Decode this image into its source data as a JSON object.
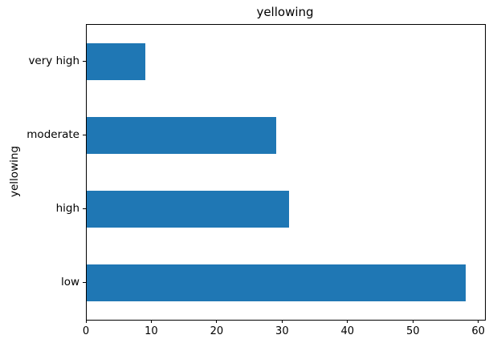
{
  "figure": {
    "background_color": "#ffffff",
    "text_color": "#000000",
    "spine_color": "#000000"
  },
  "chart_data": {
    "type": "bar",
    "orientation": "horizontal",
    "title": "yellowing",
    "xlabel": "",
    "ylabel": "yellowing",
    "categories": [
      "very high",
      "moderate",
      "high",
      "low"
    ],
    "values": [
      9,
      29,
      31,
      58
    ],
    "x_ticks": [
      0,
      10,
      20,
      30,
      40,
      50,
      60
    ],
    "xlim": [
      0,
      60.9
    ],
    "bar_color": "#1f77b4",
    "bar_relative_height": 0.5,
    "grid": false,
    "legend": false
  }
}
